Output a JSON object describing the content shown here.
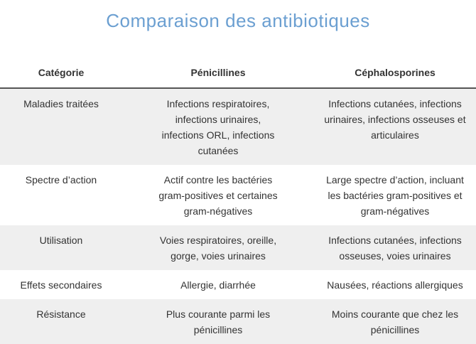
{
  "title": "Comparaison des antibiotiques",
  "table": {
    "header": [
      "Catégorie",
      "Pénicillines",
      "Céphalosporines"
    ],
    "rows": [
      [
        "Maladies traitées",
        "Infections respiratoires, infections urinaires, infections ORL, infections cutanées",
        "Infections cutanées, infections urinaires, infections osseuses et articulaires"
      ],
      [
        "Spectre d’action",
        "Actif contre les bactéries gram-positives et certaines gram-négatives",
        "Large spectre d’action, incluant les bactéries gram-positives et gram-négatives"
      ],
      [
        "Utilisation",
        "Voies respiratoires, oreille, gorge, voies urinaires",
        "Infections cutanées, infections osseuses, voies urinaires"
      ],
      [
        "Effets secondaires",
        "Allergie, diarrhée",
        "Nausées, réactions allergiques"
      ],
      [
        "Résistance",
        "Plus courante parmi les pénicillines",
        "Moins courante que chez les pénicillines"
      ]
    ]
  }
}
